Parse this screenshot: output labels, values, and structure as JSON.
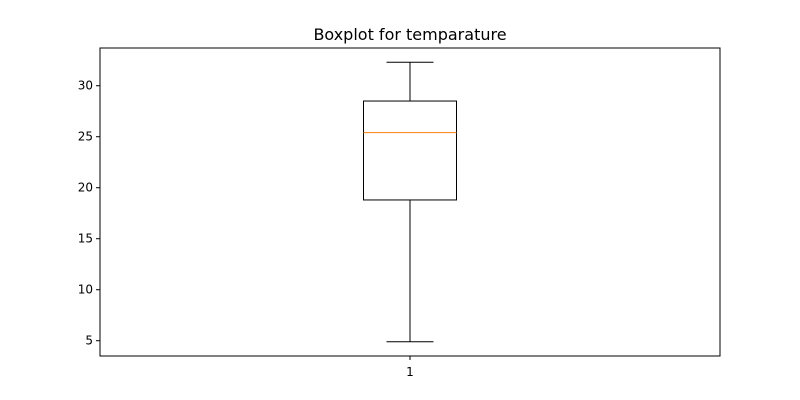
{
  "chart_data": {
    "type": "boxplot",
    "title": "Boxplot for temparature",
    "xlabel": "",
    "ylabel": "",
    "categories": [
      "1"
    ],
    "boxes": [
      {
        "category": "1",
        "whisker_low": 4.9,
        "q1": 18.8,
        "median": 25.4,
        "q3": 28.5,
        "whisker_high": 32.3
      }
    ],
    "ylim": [
      3.5,
      33.7
    ],
    "yticks": [
      5,
      10,
      15,
      20,
      25,
      30
    ],
    "grid": false,
    "legend": "none",
    "colors": {
      "box": "#000000",
      "median": "#ff7f0e",
      "whisker": "#000000",
      "axes": "#000000"
    }
  }
}
